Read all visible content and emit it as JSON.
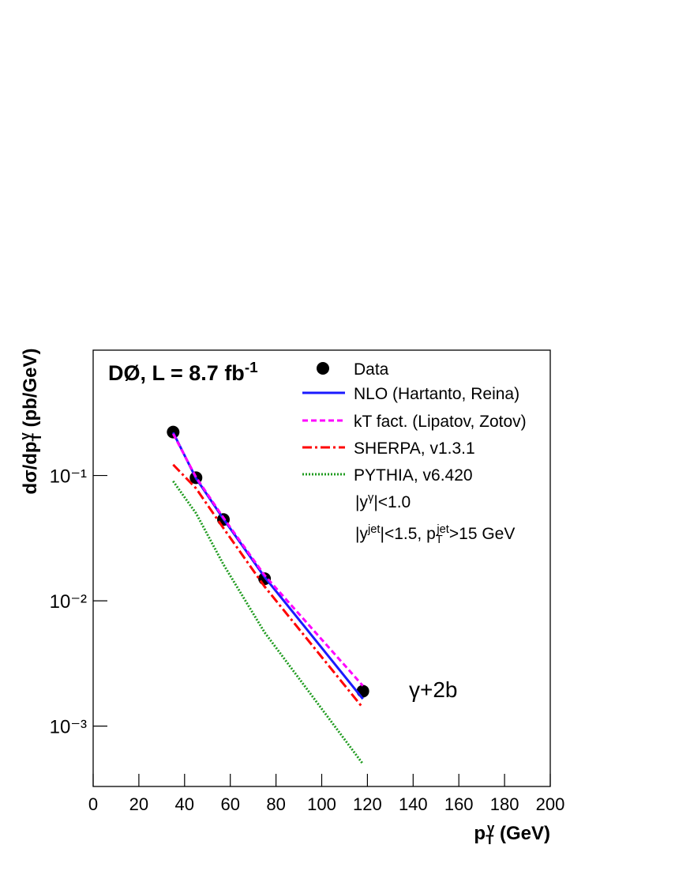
{
  "chart_data": {
    "type": "line",
    "title": [
      {
        "text": "DØ, L = 8.7 fb"
      },
      {
        "sup": "-1"
      }
    ],
    "x_label": [
      {
        "text": "p"
      },
      {
        "sub": "T"
      },
      {
        "sup": "γ"
      },
      {
        "text": " (GeV)"
      }
    ],
    "y_label": [
      {
        "text": "dσ/dp"
      },
      {
        "sub": "T"
      },
      {
        "sup": "γ"
      },
      {
        "text": " (pb/GeV)"
      }
    ],
    "annotations": [
      [
        {
          "text": "|y"
        },
        {
          "sup": "γ"
        },
        {
          "text": "|<1.0"
        }
      ],
      [
        {
          "text": "|y"
        },
        {
          "sup": "jet"
        },
        {
          "text": "|<1.5, p"
        },
        {
          "sub": "T"
        },
        {
          "sup": "jet"
        },
        {
          "text": ">15 GeV"
        }
      ],
      [
        {
          "text": "γ+2b"
        }
      ]
    ],
    "x": [
      35,
      45,
      57,
      75,
      118
    ],
    "series": [
      {
        "name": "Data",
        "color": "#000000",
        "marker": "circle",
        "values": [
          0.222,
          0.096,
          0.0445,
          0.015,
          0.0019
        ]
      },
      {
        "name": "NLO (Hartanto, Reina)",
        "color": "#1a1aff",
        "dash": "solid",
        "values": [
          0.22,
          0.095,
          0.045,
          0.0155,
          0.00165
        ]
      },
      {
        "name": "kT fact. (Lipatov, Zotov)",
        "color": "#ff00ff",
        "dash": "dashed",
        "values": [
          0.215,
          0.097,
          0.046,
          0.016,
          0.0021
        ]
      },
      {
        "name": "SHERPA, v1.3.1",
        "color": "#ff0000",
        "dash": "dashdot",
        "values": [
          0.122,
          0.079,
          0.038,
          0.013,
          0.0014
        ]
      },
      {
        "name": "PYTHIA, v6.420",
        "color": "#1f9b1f",
        "dash": "dotted",
        "values": [
          0.09,
          0.05,
          0.0195,
          0.0056,
          0.0005
        ]
      }
    ],
    "xlim": [
      0,
      200
    ],
    "xticks": [
      0,
      20,
      40,
      60,
      80,
      100,
      120,
      140,
      160,
      180,
      200
    ],
    "ylim": [
      0.00033,
      1
    ],
    "yticks": [
      {
        "value": 0.1,
        "label": "10⁻¹"
      },
      {
        "value": 0.01,
        "label": "10⁻²"
      },
      {
        "value": 0.001,
        "label": "10⁻³"
      }
    ],
    "log_y": true,
    "grid": false
  }
}
